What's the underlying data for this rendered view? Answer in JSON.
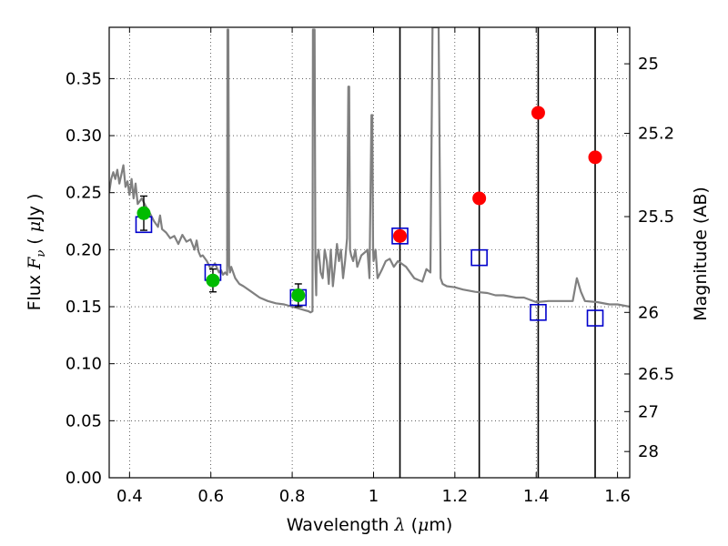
{
  "chart_data": {
    "type": "scatter",
    "title": "",
    "xlabel": {
      "prefix": "Wavelength  ",
      "sym": "λ",
      "unit_open": " (",
      "unit_mu": "μ",
      "unit_rest": "m)"
    },
    "ylabel": {
      "prefix": "Flux  ",
      "sym": "F",
      "sub": "ν",
      "unit_open": "  ( ",
      "unit_mu": "μ",
      "unit_rest": "Jy )"
    },
    "y2label": "Magnitude (AB)",
    "xlim": [
      0.35,
      1.63
    ],
    "ylim": [
      0.0,
      0.395
    ],
    "grid": true,
    "x_ticks": [
      0.4,
      0.6,
      0.8,
      1.0,
      1.2,
      1.4,
      1.6
    ],
    "x_tick_labels": [
      "0.4",
      "0.6",
      "0.8",
      "1",
      "1.2",
      "1.4",
      "1.6"
    ],
    "y_ticks": [
      0.0,
      0.05,
      0.1,
      0.15,
      0.2,
      0.25,
      0.3,
      0.35
    ],
    "y_tick_labels": [
      "0.00",
      "0.05",
      "0.10",
      "0.15",
      "0.20",
      "0.25",
      "0.30",
      "0.35"
    ],
    "y2_ticks": [
      {
        "label": "25",
        "flux": 0.363
      },
      {
        "label": "25.2",
        "flux": 0.302
      },
      {
        "label": "25.5",
        "flux": 0.229
      },
      {
        "label": "26",
        "flux": 0.145
      },
      {
        "label": "26.5",
        "flux": 0.091
      },
      {
        "label": "27",
        "flux": 0.058
      },
      {
        "label": "28",
        "flux": 0.023
      }
    ],
    "vertical_lines": [
      1.065,
      1.26,
      1.405,
      1.545
    ],
    "model_spectrum": {
      "color": "#808080",
      "x": [
        0.35,
        0.355,
        0.36,
        0.365,
        0.37,
        0.375,
        0.38,
        0.385,
        0.39,
        0.395,
        0.4,
        0.405,
        0.41,
        0.415,
        0.42,
        0.43,
        0.44,
        0.45,
        0.46,
        0.47,
        0.475,
        0.48,
        0.49,
        0.5,
        0.51,
        0.52,
        0.53,
        0.54,
        0.55,
        0.56,
        0.565,
        0.57,
        0.575,
        0.58,
        0.59,
        0.6,
        0.61,
        0.62,
        0.625,
        0.63,
        0.635,
        0.64,
        0.641,
        0.643,
        0.645,
        0.647,
        0.65,
        0.66,
        0.67,
        0.68,
        0.7,
        0.72,
        0.74,
        0.76,
        0.78,
        0.8,
        0.82,
        0.83,
        0.84,
        0.845,
        0.85,
        0.851,
        0.853,
        0.855,
        0.857,
        0.859,
        0.86,
        0.865,
        0.87,
        0.875,
        0.88,
        0.885,
        0.89,
        0.895,
        0.9,
        0.905,
        0.91,
        0.915,
        0.92,
        0.925,
        0.93,
        0.935,
        0.938,
        0.94,
        0.942,
        0.945,
        0.95,
        0.955,
        0.96,
        0.97,
        0.98,
        0.985,
        0.99,
        0.995,
        0.997,
        0.999,
        1.0,
        1.005,
        1.01,
        1.02,
        1.03,
        1.04,
        1.05,
        1.06,
        1.08,
        1.1,
        1.12,
        1.13,
        1.14,
        1.145,
        1.148,
        1.15,
        1.155,
        1.16,
        1.165,
        1.17,
        1.18,
        1.2,
        1.22,
        1.25,
        1.28,
        1.3,
        1.32,
        1.35,
        1.37,
        1.4,
        1.43,
        1.46,
        1.48,
        1.49,
        1.5,
        1.51,
        1.52,
        1.55,
        1.58,
        1.6,
        1.63
      ],
      "y": [
        0.25,
        0.262,
        0.268,
        0.262,
        0.27,
        0.258,
        0.266,
        0.274,
        0.255,
        0.26,
        0.248,
        0.262,
        0.245,
        0.258,
        0.24,
        0.245,
        0.238,
        0.232,
        0.225,
        0.22,
        0.23,
        0.218,
        0.215,
        0.21,
        0.212,
        0.205,
        0.213,
        0.207,
        0.209,
        0.2,
        0.208,
        0.198,
        0.194,
        0.195,
        0.19,
        0.183,
        0.188,
        0.18,
        0.182,
        0.178,
        0.18,
        0.178,
        0.393,
        0.393,
        0.186,
        0.18,
        0.185,
        0.175,
        0.17,
        0.168,
        0.163,
        0.158,
        0.155,
        0.153,
        0.152,
        0.15,
        0.148,
        0.147,
        0.146,
        0.145,
        0.146,
        0.393,
        0.393,
        0.393,
        0.185,
        0.16,
        0.19,
        0.2,
        0.18,
        0.175,
        0.2,
        0.19,
        0.17,
        0.2,
        0.168,
        0.185,
        0.205,
        0.19,
        0.2,
        0.175,
        0.19,
        0.21,
        0.343,
        0.343,
        0.2,
        0.195,
        0.19,
        0.2,
        0.185,
        0.195,
        0.198,
        0.2,
        0.175,
        0.318,
        0.318,
        0.2,
        0.19,
        0.2,
        0.175,
        0.182,
        0.19,
        0.192,
        0.185,
        0.19,
        0.185,
        0.175,
        0.172,
        0.183,
        0.18,
        0.395,
        0.395,
        0.395,
        0.395,
        0.395,
        0.175,
        0.17,
        0.168,
        0.167,
        0.165,
        0.163,
        0.162,
        0.16,
        0.16,
        0.158,
        0.158,
        0.154,
        0.155,
        0.155,
        0.155,
        0.155,
        0.175,
        0.163,
        0.155,
        0.154,
        0.152,
        0.152,
        0.15
      ]
    },
    "series": [
      {
        "name": "",
        "marker": "open-square",
        "color": "#0000cc",
        "x": [
          0.435,
          0.605,
          0.815,
          1.065,
          1.26,
          1.405,
          1.545
        ],
        "y": [
          0.222,
          0.18,
          0.158,
          0.212,
          0.193,
          0.145,
          0.14
        ]
      },
      {
        "name": "",
        "marker": "filled-circle",
        "color": "#00bb00",
        "x": [
          0.435,
          0.605,
          0.815
        ],
        "y": [
          0.232,
          0.173,
          0.16
        ],
        "yerr": [
          0.015,
          0.01,
          0.01
        ]
      },
      {
        "name": "",
        "marker": "filled-circle",
        "color": "#ff0000",
        "x": [
          1.065,
          1.26,
          1.405,
          1.545
        ],
        "y": [
          0.212,
          0.245,
          0.32,
          0.281
        ]
      }
    ]
  }
}
